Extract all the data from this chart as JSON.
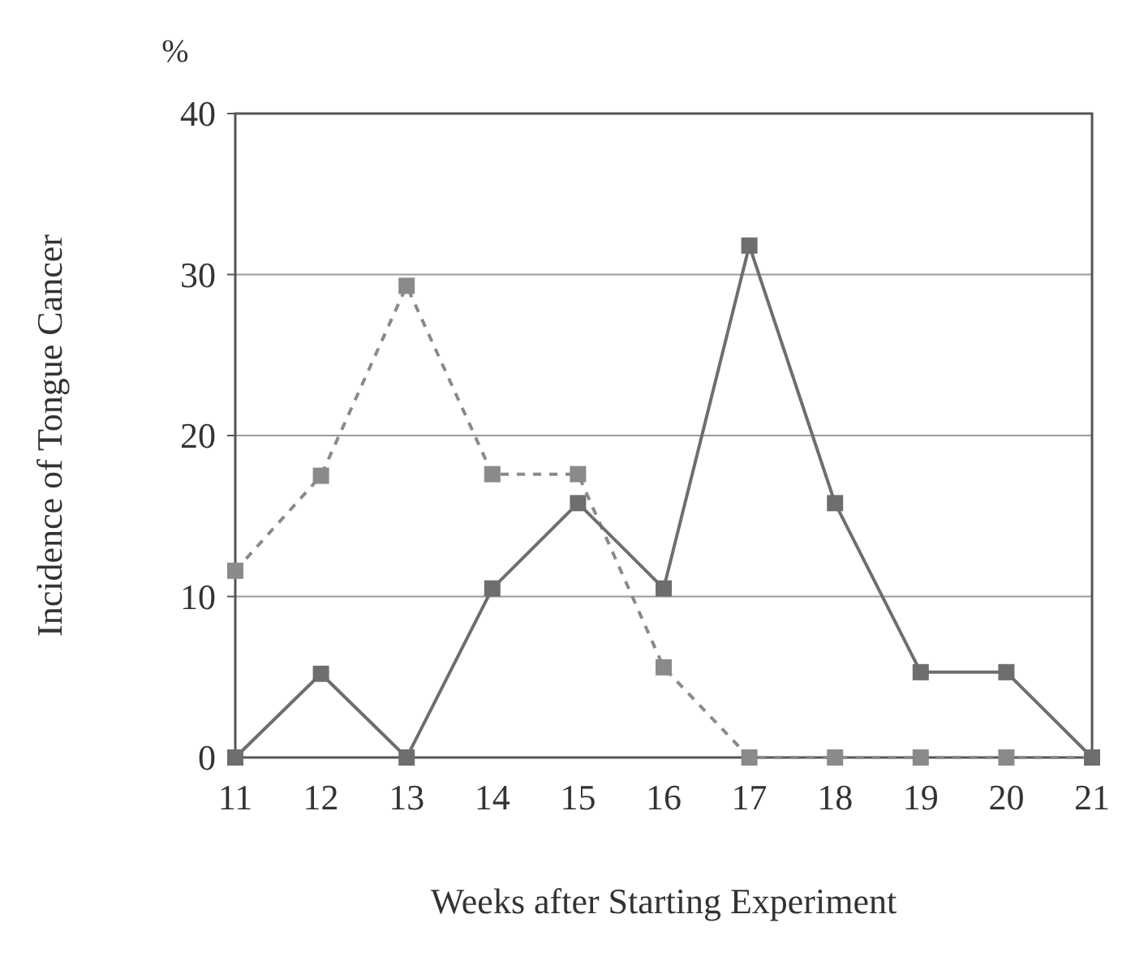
{
  "chart_data": {
    "type": "line",
    "xlabel": "Weeks after Starting Experiment",
    "ylabel": "Incidence of Tongue Cancer",
    "annotations": [
      "%"
    ],
    "xlim": [
      11,
      21
    ],
    "xticks": [
      11,
      12,
      13,
      14,
      15,
      16,
      17,
      18,
      19,
      20,
      21
    ],
    "ylim": [
      0,
      40
    ],
    "yticks": [
      0,
      10,
      20,
      30,
      40
    ],
    "grid": "y",
    "marker": "square",
    "series": [
      {
        "color": "#8a8a8a",
        "line_style": "dashed",
        "x": [
          11,
          12,
          13,
          14,
          15,
          16,
          17,
          18,
          19,
          20,
          21
        ],
        "values": [
          11.6,
          17.5,
          29.3,
          17.6,
          17.6,
          5.6,
          0,
          0,
          0,
          0,
          0
        ]
      },
      {
        "color": "#6e6e6e",
        "line_style": "solid",
        "x": [
          11,
          12,
          13,
          14,
          15,
          16,
          17,
          18,
          19,
          20,
          21
        ],
        "values": [
          0,
          5.2,
          0,
          10.5,
          15.8,
          10.5,
          31.8,
          15.8,
          5.3,
          5.3,
          0
        ]
      }
    ]
  }
}
